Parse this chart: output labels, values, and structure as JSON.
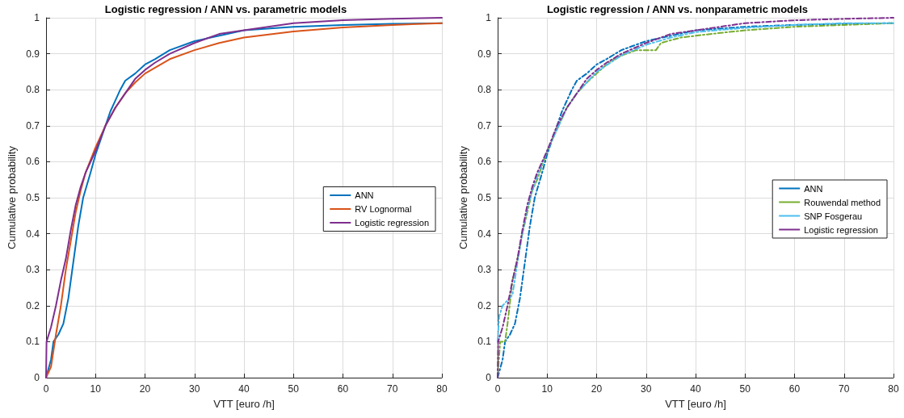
{
  "chart_data": [
    {
      "type": "line",
      "title": "Logistic regression / ANN vs. parametric models",
      "xlabel": "VTT [euro /h]",
      "ylabel": "Cumulative probability",
      "xlim": [
        0,
        80
      ],
      "xticks": [
        0,
        10,
        20,
        30,
        40,
        50,
        60,
        70,
        80
      ],
      "ylim": [
        0,
        1
      ],
      "yticks": [
        0,
        0.1,
        0.2,
        0.3,
        0.4,
        0.5,
        0.6,
        0.7,
        0.8,
        0.9,
        1
      ],
      "grid": true,
      "legend": "right",
      "marker": "none",
      "line_style": "solid",
      "series": [
        {
          "name": "ANN",
          "color": "#0072bd",
          "x": [
            0,
            1,
            1.5,
            2.5,
            3.5,
            4.5,
            5.5,
            6.5,
            7.5,
            9,
            10,
            11,
            12,
            13,
            14,
            15,
            16,
            18,
            20,
            22,
            25,
            30,
            35,
            40,
            50,
            60,
            70,
            80
          ],
          "values": [
            0,
            0.05,
            0.1,
            0.12,
            0.15,
            0.22,
            0.32,
            0.42,
            0.5,
            0.57,
            0.62,
            0.66,
            0.7,
            0.74,
            0.77,
            0.8,
            0.825,
            0.845,
            0.87,
            0.885,
            0.91,
            0.935,
            0.95,
            0.965,
            0.975,
            0.98,
            0.983,
            0.985
          ]
        },
        {
          "name": "RV Lognormal",
          "color": "#d95319",
          "x": [
            0,
            1,
            2,
            3,
            4,
            5,
            6,
            7,
            8,
            10,
            12,
            14,
            16,
            18,
            20,
            25,
            30,
            35,
            40,
            50,
            60,
            70,
            80
          ],
          "values": [
            0,
            0.03,
            0.12,
            0.2,
            0.3,
            0.38,
            0.46,
            0.52,
            0.57,
            0.64,
            0.7,
            0.75,
            0.79,
            0.82,
            0.845,
            0.885,
            0.91,
            0.93,
            0.945,
            0.962,
            0.973,
            0.98,
            0.985
          ]
        },
        {
          "name": "Logistic regression",
          "color": "#7e2f8e",
          "x": [
            0,
            0.1,
            1,
            2,
            3,
            4,
            5,
            6,
            7,
            8,
            10,
            12,
            14,
            16,
            18,
            20,
            22,
            25,
            30,
            35,
            40,
            50,
            60,
            70,
            80
          ],
          "values": [
            0,
            0.1,
            0.14,
            0.2,
            0.27,
            0.33,
            0.41,
            0.48,
            0.53,
            0.57,
            0.63,
            0.7,
            0.75,
            0.79,
            0.83,
            0.855,
            0.875,
            0.9,
            0.93,
            0.955,
            0.965,
            0.985,
            0.993,
            0.997,
            1
          ]
        }
      ]
    },
    {
      "type": "line",
      "title": "Logistic regression / ANN vs. nonparametric models",
      "xlabel": "VTT [euro /h]",
      "ylabel": "Cumulative probability",
      "xlim": [
        0,
        80
      ],
      "xticks": [
        0,
        10,
        20,
        30,
        40,
        50,
        60,
        70,
        80
      ],
      "ylim": [
        0,
        1
      ],
      "yticks": [
        0,
        0.1,
        0.2,
        0.3,
        0.4,
        0.5,
        0.6,
        0.7,
        0.8,
        0.9,
        1
      ],
      "grid": true,
      "legend": "right",
      "marker": "none",
      "line_style": "dashed",
      "series": [
        {
          "name": "ANN",
          "color": "#0072bd",
          "x": [
            0,
            1,
            1.5,
            2.5,
            3.5,
            4.5,
            5.5,
            6.5,
            7.5,
            9,
            10,
            11,
            12,
            13,
            14,
            15,
            16,
            18,
            20,
            22,
            25,
            30,
            35,
            40,
            50,
            60,
            70,
            80
          ],
          "values": [
            0,
            0.05,
            0.1,
            0.12,
            0.15,
            0.22,
            0.32,
            0.42,
            0.5,
            0.57,
            0.62,
            0.66,
            0.7,
            0.74,
            0.77,
            0.8,
            0.825,
            0.845,
            0.87,
            0.885,
            0.91,
            0.935,
            0.95,
            0.965,
            0.975,
            0.98,
            0.983,
            0.985
          ]
        },
        {
          "name": "Rouwendal method",
          "color": "#77ac30",
          "x": [
            0,
            0.5,
            1.5,
            2,
            3,
            4,
            5,
            6,
            7,
            8,
            10,
            12,
            14,
            16,
            18,
            20,
            22,
            23,
            25,
            28,
            32,
            33,
            37,
            40,
            45,
            50,
            60,
            70,
            80
          ],
          "values": [
            0,
            0.1,
            0.1,
            0.15,
            0.27,
            0.33,
            0.4,
            0.46,
            0.52,
            0.55,
            0.63,
            0.69,
            0.75,
            0.79,
            0.82,
            0.845,
            0.87,
            0.88,
            0.895,
            0.91,
            0.91,
            0.93,
            0.945,
            0.95,
            0.958,
            0.965,
            0.975,
            0.98,
            0.985
          ]
        },
        {
          "name": "SNP Fosgerau",
          "color": "#4dbeee",
          "x": [
            0,
            0.3,
            1,
            2,
            3,
            4,
            5,
            6,
            7,
            8,
            10,
            12,
            14,
            16,
            18,
            20,
            25,
            30,
            35,
            40,
            50,
            60,
            70,
            80
          ],
          "values": [
            0.1,
            0.17,
            0.2,
            0.215,
            0.23,
            0.32,
            0.4,
            0.47,
            0.52,
            0.56,
            0.63,
            0.69,
            0.75,
            0.79,
            0.82,
            0.85,
            0.895,
            0.925,
            0.945,
            0.96,
            0.972,
            0.98,
            0.985,
            0.985
          ]
        },
        {
          "name": "Logistic regression",
          "color": "#7e2f8e",
          "x": [
            0,
            0.1,
            1,
            2,
            3,
            4,
            5,
            6,
            7,
            8,
            10,
            12,
            14,
            16,
            18,
            20,
            22,
            25,
            30,
            35,
            40,
            50,
            60,
            70,
            80
          ],
          "values": [
            0,
            0.1,
            0.14,
            0.2,
            0.27,
            0.33,
            0.41,
            0.48,
            0.53,
            0.57,
            0.63,
            0.7,
            0.75,
            0.79,
            0.83,
            0.855,
            0.875,
            0.9,
            0.93,
            0.955,
            0.965,
            0.985,
            0.993,
            0.997,
            1
          ]
        }
      ]
    }
  ]
}
